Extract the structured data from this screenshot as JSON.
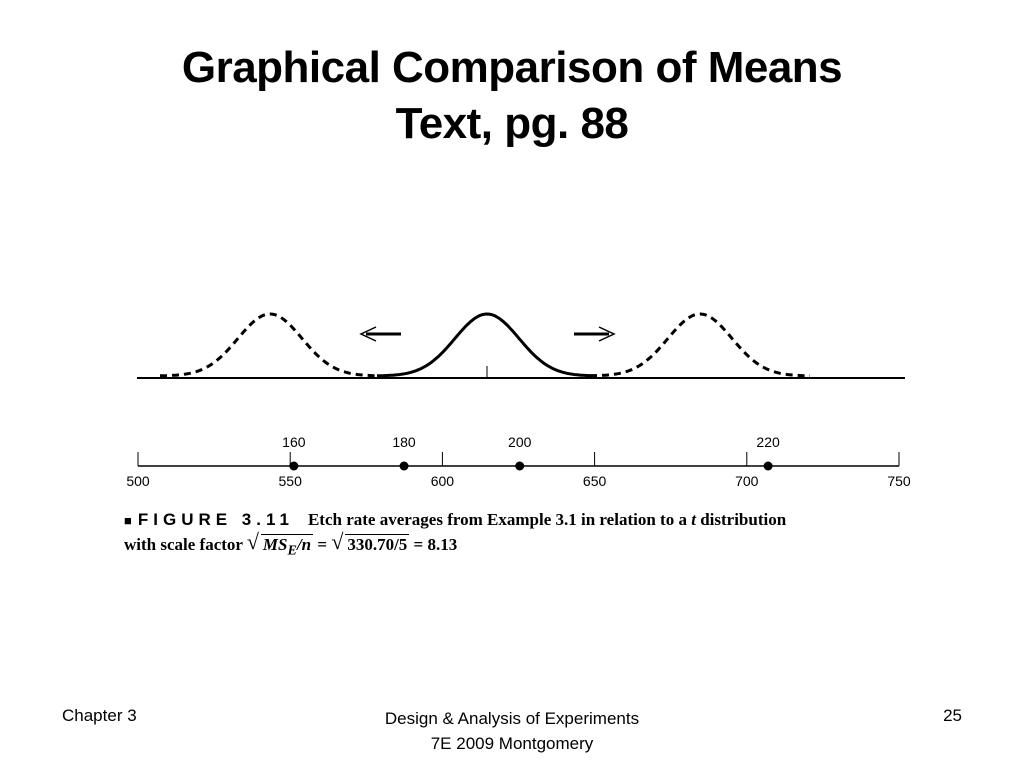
{
  "title": {
    "line1": "Graphical Comparison of Means",
    "line2": "Text, pg. 88"
  },
  "chart_data": {
    "type": "scatter",
    "axis": {
      "min": 500,
      "max": 750,
      "ticks": [
        500,
        550,
        600,
        650,
        700,
        750
      ]
    },
    "points": [
      {
        "label": "160",
        "x": 551.2
      },
      {
        "label": "180",
        "x": 587.4
      },
      {
        "label": "200",
        "x": 625.4
      },
      {
        "label": "220",
        "x": 707.0
      }
    ],
    "distribution": {
      "center": 617.5,
      "scale_factor": 8.13,
      "shifted_left_center": 561,
      "shifted_right_center": 687
    }
  },
  "caption": {
    "marker": "■",
    "figure_label": "FIGURE 3.11",
    "text_part1": "Etch rate averages from Example 3.1 in relation to a ",
    "t": "t",
    "text_part2": " distribution",
    "line2_prefix": "with scale factor ",
    "ms": "MS",
    "ms_sub": "E",
    "slash_n": "/n",
    "eq1": " = ",
    "sqrt_value": "330.70/5",
    "eq2": " = 8.13"
  },
  "footer": {
    "left": "Chapter 3",
    "center_line1": "Design & Analysis of Experiments",
    "center_line2": "7E 2009 Montgomery",
    "right": "25"
  }
}
